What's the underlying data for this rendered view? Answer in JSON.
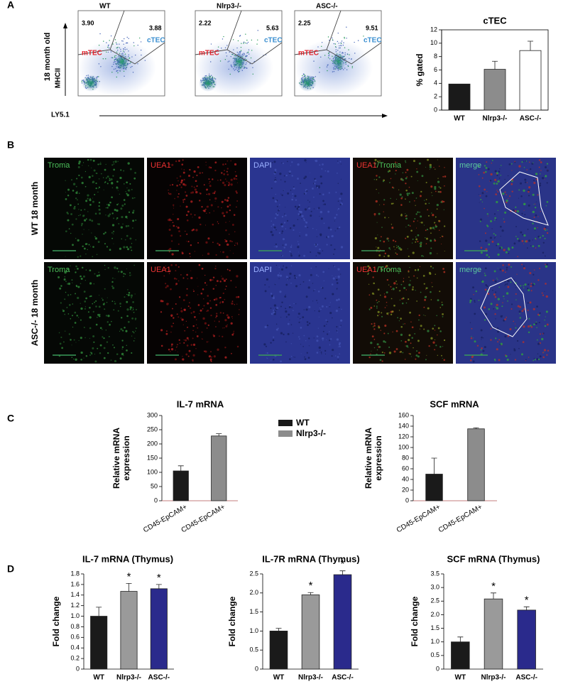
{
  "panel_labels": [
    "A",
    "B",
    "C",
    "D"
  ],
  "flow": {
    "plots": [
      {
        "title": "WT",
        "mtec_value": "3.90",
        "ctec_value": "3.88"
      },
      {
        "title": "Nlrp3-/-",
        "mtec_value": "2.22",
        "ctec_value": "5.63"
      },
      {
        "title": "ASC-/-",
        "mtec_value": "2.25",
        "ctec_value": "9.51"
      }
    ],
    "gate_labels": {
      "mtec": "mTEC",
      "ctec": "cTEC"
    },
    "group_label": "18 month old",
    "y_label": "MHCII",
    "x_label": "LY5.1"
  },
  "images": {
    "columns": [
      "Troma",
      "UEA1",
      "DAPI",
      [
        "UEA1",
        "/Troma"
      ],
      "merge"
    ],
    "rows": [
      "WT 18 month",
      "ASC-/- 18 month"
    ]
  },
  "chart_data": [
    {
      "type": "bar",
      "title": "cTEC",
      "ylabel": [
        "% gated"
      ],
      "categories": [
        "WT",
        "Nlrp3-/-",
        "ASC-/-"
      ],
      "values": [
        3.9,
        6.1,
        8.9
      ],
      "errors": [
        null,
        1.2,
        1.4
      ],
      "colors": [
        "#1a1a1a",
        "#8c8c8c",
        "#ffffff"
      ],
      "ylim": [
        0,
        12
      ],
      "yticks": [
        0,
        2,
        4,
        6,
        8,
        10,
        12
      ],
      "frame": true
    },
    {
      "type": "bar",
      "title": "IL-7 mRNA",
      "ylabel": [
        "Relative mRNA",
        "expression"
      ],
      "categories": [
        "CD45-EpCAM+",
        "CD45-EpCAM+"
      ],
      "values": [
        105,
        228
      ],
      "errors": [
        18,
        8
      ],
      "colors": [
        "#1a1a1a",
        "#8c8c8c"
      ],
      "ylim": [
        0,
        300
      ],
      "yticks": [
        0,
        50,
        100,
        150,
        200,
        250,
        300
      ],
      "legend": [
        {
          "name": "WT",
          "color": "#1a1a1a"
        },
        {
          "name": "Nlrp3-/-",
          "color": "#8c8c8c"
        }
      ]
    },
    {
      "type": "bar",
      "title": "SCF mRNA",
      "ylabel": [
        "Relative mRNA",
        "expression"
      ],
      "categories": [
        "CD45-EpCAM+",
        "CD45-EpCAM+"
      ],
      "values": [
        50,
        135
      ],
      "errors": [
        30,
        2
      ],
      "colors": [
        "#1a1a1a",
        "#8c8c8c"
      ],
      "ylim": [
        0,
        160
      ],
      "yticks": [
        0,
        20,
        40,
        60,
        80,
        100,
        120,
        140,
        160
      ]
    },
    {
      "type": "bar",
      "title": "IL-7 mRNA (Thymus)",
      "ylabel": [
        "Fold change"
      ],
      "categories": [
        "WT",
        "Nlrp3-/-",
        "ASC-/-"
      ],
      "values": [
        1.0,
        1.47,
        1.52
      ],
      "errors": [
        0.17,
        0.15,
        0.08
      ],
      "significance": [
        null,
        "*",
        "*"
      ],
      "colors": [
        "#1a1a1a",
        "#9a9a9a",
        "#2a2a8c"
      ],
      "ylim": [
        0,
        1.8
      ],
      "yticks": [
        0,
        0.2,
        0.4,
        0.6,
        0.8,
        {
          "value": 1,
          "label": "1.0"
        },
        1.2,
        1.4,
        1.6,
        1.8
      ]
    },
    {
      "type": "bar",
      "title": "IL-7R mRNA (Thymus)",
      "ylabel": [
        "Fold change"
      ],
      "categories": [
        "WT",
        "Nlrp3-/-",
        "ASC-/-"
      ],
      "values": [
        1.0,
        1.95,
        2.48
      ],
      "errors": [
        0.07,
        0.06,
        0.1
      ],
      "significance": [
        null,
        "*",
        "*"
      ],
      "colors": [
        "#1a1a1a",
        "#9a9a9a",
        "#2a2a8c"
      ],
      "ylim": [
        0,
        2.5
      ],
      "yticks": [
        0,
        0.5,
        {
          "value": 1,
          "label": "1.0"
        },
        1.5,
        {
          "value": 2,
          "label": "2.0"
        },
        2.5
      ]
    },
    {
      "type": "bar",
      "title": "SCF mRNA (Thymus)",
      "ylabel": [
        "Fold change"
      ],
      "categories": [
        "WT",
        "Nlrp3-/-",
        "ASC-/-"
      ],
      "values": [
        1.0,
        2.58,
        2.17
      ],
      "errors": [
        0.18,
        0.22,
        0.12
      ],
      "significance": [
        null,
        "*",
        "*"
      ],
      "colors": [
        "#1a1a1a",
        "#9a9a9a",
        "#2a2a8c"
      ],
      "ylim": [
        0,
        3.5
      ],
      "yticks": [
        0,
        0.5,
        {
          "value": 1,
          "label": "1.0"
        },
        1.5,
        {
          "value": 2,
          "label": "2.0"
        },
        2.5,
        {
          "value": 3,
          "label": "3.0"
        },
        3.5
      ]
    }
  ]
}
